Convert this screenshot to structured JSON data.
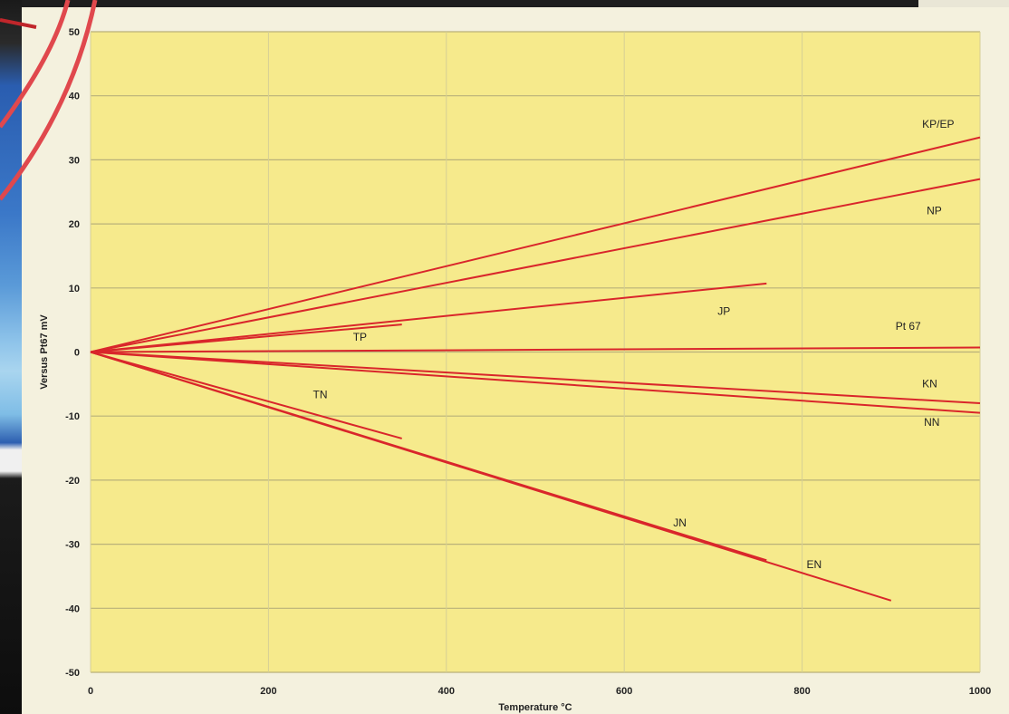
{
  "chart_data": {
    "type": "line",
    "title": "",
    "xlabel": "Temperature °C",
    "ylabel": "Versus Pt67 mV",
    "xlim": [
      0,
      1000
    ],
    "ylim": [
      -50,
      50
    ],
    "x_ticks": [
      "0",
      "200",
      "400",
      "600",
      "800",
      "1000"
    ],
    "y_ticks": [
      "50",
      "40",
      "30",
      "20",
      "10",
      "0",
      "-10",
      "-20",
      "-30",
      "-40",
      "-50"
    ],
    "grid": true,
    "plot_background": "#f6ea8c",
    "line_color": "#d9262b",
    "series": [
      {
        "name": "KP/EP",
        "x": [
          0,
          1000
        ],
        "y": [
          0,
          33.5
        ]
      },
      {
        "name": "NP",
        "x": [
          0,
          1000
        ],
        "y": [
          0,
          27
        ]
      },
      {
        "name": "JP",
        "x": [
          0,
          760
        ],
        "y": [
          0,
          10.7
        ]
      },
      {
        "name": "TP",
        "x": [
          0,
          350
        ],
        "y": [
          0,
          4.3
        ]
      },
      {
        "name": "Pt 67",
        "x": [
          0,
          1000
        ],
        "y": [
          0,
          0.7
        ]
      },
      {
        "name": "KN",
        "x": [
          0,
          1000
        ],
        "y": [
          0,
          -8
        ]
      },
      {
        "name": "NN",
        "x": [
          0,
          1000
        ],
        "y": [
          0,
          -9.5
        ]
      },
      {
        "name": "TN",
        "x": [
          0,
          350
        ],
        "y": [
          0,
          -13.5
        ]
      },
      {
        "name": "JN",
        "x": [
          0,
          760
        ],
        "y": [
          0,
          -32.5
        ]
      },
      {
        "name": "EN",
        "x": [
          0,
          900
        ],
        "y": [
          0,
          -38.8
        ]
      }
    ],
    "annotations": [
      {
        "text": "KP/EP",
        "x": 935,
        "y": 35
      },
      {
        "text": "NP",
        "x": 940,
        "y": 21.5
      },
      {
        "text": "JP",
        "x": 705,
        "y": 5.8
      },
      {
        "text": "TP",
        "x": 295,
        "y": 1.8
      },
      {
        "text": "Pt 67",
        "x": 905,
        "y": 3.5
      },
      {
        "text": "KN",
        "x": 935,
        "y": -5.5
      },
      {
        "text": "NN",
        "x": 937,
        "y": -11.5
      },
      {
        "text": "TN",
        "x": 250,
        "y": -7.2
      },
      {
        "text": "JN",
        "x": 655,
        "y": -27.2
      },
      {
        "text": "EN",
        "x": 805,
        "y": -33.7
      }
    ]
  }
}
